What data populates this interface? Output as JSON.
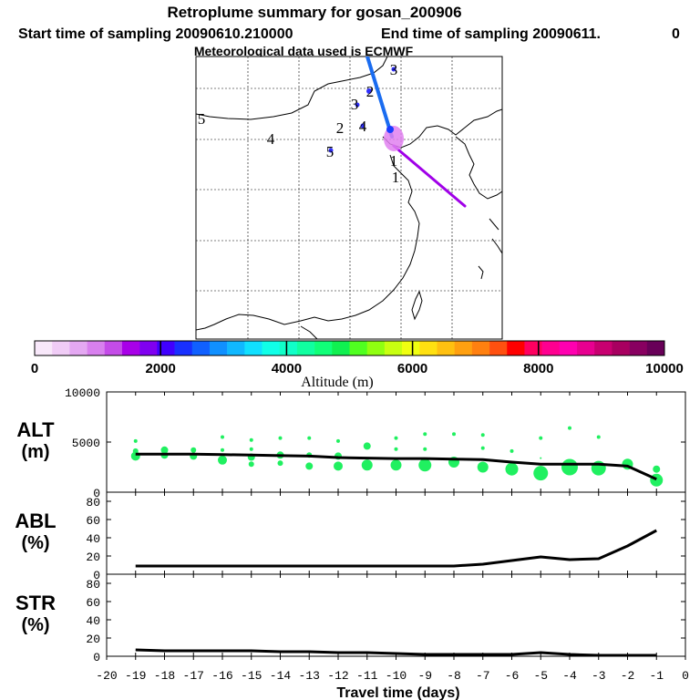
{
  "header": {
    "title": "Retroplume summary for gosan_200906",
    "start_label": "Start time of sampling 20090610.210000",
    "end_label": "End time of sampling 20090611.",
    "end_suffix": "0",
    "met_label": "Meteorological data used is ECMWF"
  },
  "colorbar": {
    "xlabel": "Altitude (m)",
    "ticks": [
      "0",
      "2000",
      "4000",
      "6000",
      "8000",
      "10000"
    ],
    "colors": [
      "#f8e8fa",
      "#f0ccf6",
      "#e4a8f2",
      "#d880ee",
      "#c44ce8",
      "#a800e8",
      "#8000f0",
      "#4000ff",
      "#1830ff",
      "#1060ff",
      "#1090ff",
      "#10b8ff",
      "#10e0ff",
      "#10ffe8",
      "#10ffc8",
      "#10ffa0",
      "#10ff78",
      "#10f050",
      "#50ff20",
      "#90ff10",
      "#c8ff10",
      "#f0ff10",
      "#ffe010",
      "#ffc010",
      "#ffa010",
      "#ff8010",
      "#ff5010",
      "#ff0000",
      "#ff0060",
      "#ff0090",
      "#ff00b0",
      "#e80090",
      "#c80070",
      "#a80060",
      "#880060",
      "#680058"
    ]
  },
  "map": {
    "numbers": [
      {
        "label": "3",
        "dx": 3
      },
      {
        "label": "2",
        "dx": 2
      },
      {
        "label": "3",
        "dx": 3
      },
      {
        "label": "4",
        "dx": 4
      },
      {
        "label": "2",
        "dx": 2
      },
      {
        "label": "5",
        "dx": 5
      },
      {
        "label": "4",
        "dx": 4
      },
      {
        "label": "5",
        "dx": 5
      },
      {
        "label": "1",
        "dx": 1
      },
      {
        "label": "1",
        "dx": 1
      }
    ],
    "track_colors": {
      "blue": "#1a6cf0",
      "purple": "#a000e8"
    }
  },
  "chart_data": [
    {
      "type": "line",
      "title": "ALT",
      "ylabel": "ALT (m)",
      "ylabel_lines": [
        "ALT",
        "(m)"
      ],
      "ylim": [
        0,
        10000
      ],
      "yticks": [
        "10000",
        "5000",
        "0"
      ],
      "ytick_values": [
        10000,
        5000,
        0
      ],
      "x": [
        -19,
        -18,
        -17,
        -16,
        -15,
        -14,
        -13,
        -12,
        -11,
        -10,
        -9,
        -8,
        -7,
        -6,
        -5,
        -4,
        -3,
        -2,
        -1
      ],
      "series": [
        {
          "name": "mean altitude",
          "values": [
            3800,
            3800,
            3800,
            3750,
            3700,
            3650,
            3600,
            3450,
            3400,
            3350,
            3350,
            3300,
            3250,
            3000,
            2800,
            2800,
            2800,
            2600,
            1300
          ]
        }
      ],
      "scatter": [
        {
          "x": -19,
          "y": 5100,
          "r": 2
        },
        {
          "x": -19,
          "y": 4100,
          "r": 3
        },
        {
          "x": -19,
          "y": 3600,
          "r": 5
        },
        {
          "x": -18,
          "y": 4200,
          "r": 4
        },
        {
          "x": -18,
          "y": 3700,
          "r": 4
        },
        {
          "x": -17,
          "y": 4200,
          "r": 3
        },
        {
          "x": -17,
          "y": 3600,
          "r": 4
        },
        {
          "x": -16,
          "y": 5500,
          "r": 2
        },
        {
          "x": -16,
          "y": 4200,
          "r": 2
        },
        {
          "x": -16,
          "y": 3200,
          "r": 5
        },
        {
          "x": -15,
          "y": 5200,
          "r": 2
        },
        {
          "x": -15,
          "y": 4300,
          "r": 2
        },
        {
          "x": -15,
          "y": 3500,
          "r": 4
        },
        {
          "x": -15,
          "y": 2800,
          "r": 3
        },
        {
          "x": -14,
          "y": 5400,
          "r": 2
        },
        {
          "x": -14,
          "y": 3700,
          "r": 4
        },
        {
          "x": -14,
          "y": 2900,
          "r": 3
        },
        {
          "x": -13,
          "y": 5400,
          "r": 2
        },
        {
          "x": -13,
          "y": 3700,
          "r": 3
        },
        {
          "x": -13,
          "y": 2600,
          "r": 4
        },
        {
          "x": -12,
          "y": 5100,
          "r": 2
        },
        {
          "x": -12,
          "y": 3600,
          "r": 4
        },
        {
          "x": -12,
          "y": 2600,
          "r": 5
        },
        {
          "x": -11,
          "y": 4600,
          "r": 4
        },
        {
          "x": -11,
          "y": 2700,
          "r": 6
        },
        {
          "x": -10,
          "y": 5400,
          "r": 2
        },
        {
          "x": -10,
          "y": 4300,
          "r": 2
        },
        {
          "x": -10,
          "y": 2700,
          "r": 6
        },
        {
          "x": -9,
          "y": 5800,
          "r": 2
        },
        {
          "x": -9,
          "y": 4300,
          "r": 2
        },
        {
          "x": -9,
          "y": 2700,
          "r": 7
        },
        {
          "x": -8,
          "y": 5800,
          "r": 2
        },
        {
          "x": -8,
          "y": 3000,
          "r": 6
        },
        {
          "x": -7,
          "y": 5700,
          "r": 2
        },
        {
          "x": -7,
          "y": 4400,
          "r": 2
        },
        {
          "x": -7,
          "y": 2500,
          "r": 6
        },
        {
          "x": -6,
          "y": 4100,
          "r": 2
        },
        {
          "x": -6,
          "y": 2300,
          "r": 7
        },
        {
          "x": -5,
          "y": 5400,
          "r": 2
        },
        {
          "x": -5,
          "y": 3400,
          "r": 1
        },
        {
          "x": -5,
          "y": 1900,
          "r": 8
        },
        {
          "x": -4,
          "y": 6400,
          "r": 2
        },
        {
          "x": -4,
          "y": 2500,
          "r": 9
        },
        {
          "x": -3,
          "y": 5500,
          "r": 2
        },
        {
          "x": -3,
          "y": 2400,
          "r": 8
        },
        {
          "x": -2,
          "y": 2800,
          "r": 6
        },
        {
          "x": -1,
          "y": 2300,
          "r": 4
        },
        {
          "x": -1,
          "y": 1200,
          "r": 7
        }
      ],
      "marker_color": "#20f060"
    },
    {
      "type": "line",
      "title": "ABL",
      "ylabel": "ABL (%)",
      "ylabel_lines": [
        "ABL",
        "(%)"
      ],
      "ylim": [
        0,
        90
      ],
      "yticks": [
        "80",
        "60",
        "40",
        "20",
        "0"
      ],
      "ytick_values": [
        80,
        60,
        40,
        20,
        0
      ],
      "x": [
        -19,
        -18,
        -17,
        -16,
        -15,
        -14,
        -13,
        -12,
        -11,
        -10,
        -9,
        -8,
        -7,
        -6,
        -5,
        -4,
        -3,
        -2,
        -1
      ],
      "series": [
        {
          "name": "ABL fraction",
          "values": [
            9,
            9,
            9,
            9,
            9,
            9,
            9,
            9,
            9,
            9,
            9,
            9,
            11,
            15,
            19,
            16,
            17,
            31,
            48
          ]
        }
      ]
    },
    {
      "type": "line",
      "title": "STR",
      "ylabel": "STR (%)",
      "ylabel_lines": [
        "STR",
        "(%)"
      ],
      "ylim": [
        0,
        90
      ],
      "yticks": [
        "80",
        "60",
        "40",
        "20",
        "0"
      ],
      "ytick_values": [
        80,
        60,
        40,
        20,
        0
      ],
      "xlabel": "Travel time (days)",
      "xticks": [
        "-20",
        "-19",
        "-18",
        "-17",
        "-16",
        "-15",
        "-14",
        "-13",
        "-12",
        "-11",
        "-10",
        "-9",
        "-8",
        "-7",
        "-6",
        "-5",
        "-4",
        "-3",
        "-2",
        "-1",
        "0"
      ],
      "xtick_values": [
        -20,
        -19,
        -18,
        -17,
        -16,
        -15,
        -14,
        -13,
        -12,
        -11,
        -10,
        -9,
        -8,
        -7,
        -6,
        -5,
        -4,
        -3,
        -2,
        -1,
        0
      ],
      "x": [
        -19,
        -18,
        -17,
        -16,
        -15,
        -14,
        -13,
        -12,
        -11,
        -10,
        -9,
        -8,
        -7,
        -6,
        -5,
        -4,
        -3,
        -2,
        -1
      ],
      "series": [
        {
          "name": "stratospheric fraction",
          "values": [
            7,
            6,
            6,
            6,
            6,
            5,
            5,
            4,
            4,
            3,
            2,
            2,
            2,
            2,
            4,
            2,
            1,
            1,
            1
          ]
        }
      ]
    }
  ]
}
